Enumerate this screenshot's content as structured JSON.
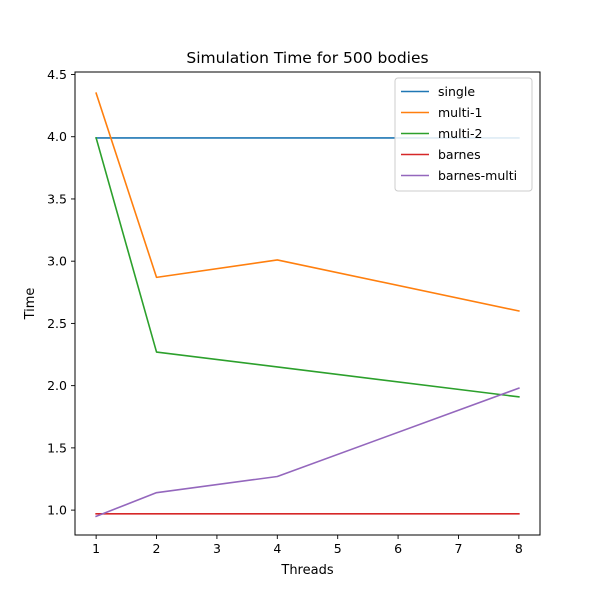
{
  "chart_data": {
    "type": "line",
    "title": "Simulation Time for 500 bodies",
    "xlabel": "Threads",
    "ylabel": "Time",
    "x": [
      1,
      2,
      4,
      8
    ],
    "xlim": [
      0.65,
      8.35
    ],
    "ylim": [
      0.8,
      4.52
    ],
    "xticks": [
      1,
      2,
      3,
      4,
      5,
      6,
      7,
      8
    ],
    "yticks": [
      1.0,
      1.5,
      2.0,
      2.5,
      3.0,
      3.5,
      4.0,
      4.5
    ],
    "ytick_labels": [
      "1.0",
      "1.5",
      "2.0",
      "2.5",
      "3.0",
      "3.5",
      "4.0",
      "4.5"
    ],
    "grid": false,
    "legend_position": "top-right",
    "series": [
      {
        "name": "single",
        "color": "#1f77b4",
        "values": [
          3.99,
          3.99,
          3.99,
          3.99
        ]
      },
      {
        "name": "multi-1",
        "color": "#ff7f0e",
        "values": [
          4.35,
          2.87,
          3.01,
          2.6
        ]
      },
      {
        "name": "multi-2",
        "color": "#2ca02c",
        "values": [
          3.99,
          2.27,
          2.15,
          1.91
        ]
      },
      {
        "name": "barnes",
        "color": "#d62728",
        "values": [
          0.97,
          0.97,
          0.97,
          0.97
        ]
      },
      {
        "name": "barnes-multi",
        "color": "#9467bd",
        "values": [
          0.95,
          1.14,
          1.27,
          1.98
        ]
      }
    ]
  }
}
